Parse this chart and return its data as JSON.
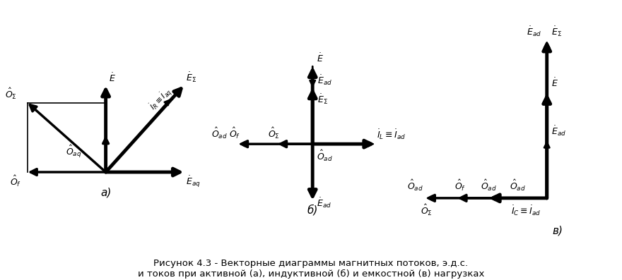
{
  "bg_color": "#ffffff",
  "fs": 9,
  "caption": "Рисунок 4.3 - Векторные диаграммы магнитных потоков, э.д.с.\nи токов при активной (а), индуктивной (б) и емкостной (в) нагрузках"
}
